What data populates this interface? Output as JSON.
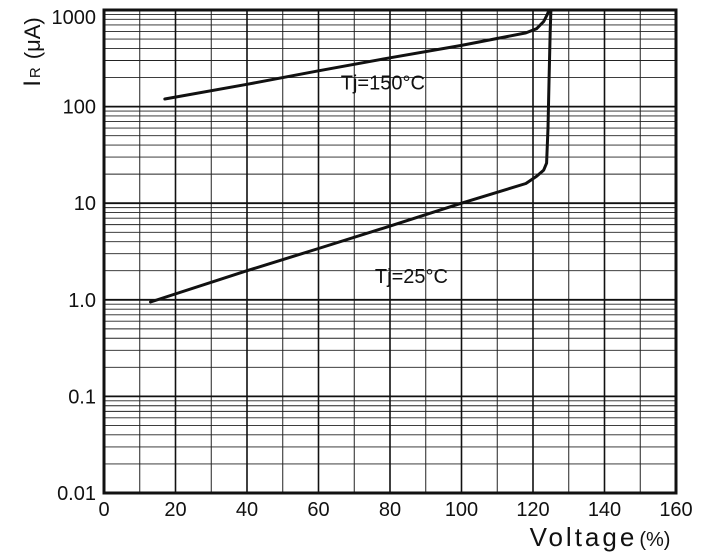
{
  "chart_data": {
    "type": "line",
    "title": "",
    "xlabel": "Voltage",
    "xlabel_unit": "(%)",
    "ylabel": "I",
    "ylabel_sub": "R",
    "ylabel_unit": "(μA)",
    "x_scale": "linear",
    "y_scale": "log",
    "xlim": [
      0,
      160
    ],
    "ylim": [
      0.01,
      1000
    ],
    "grid": true,
    "x_ticks": [
      0,
      20,
      40,
      60,
      80,
      100,
      120,
      140,
      160
    ],
    "x_tick_labels": [
      "0",
      "20",
      "40",
      "60",
      "80",
      "100",
      "120",
      "140",
      "160"
    ],
    "y_ticks": [
      0.01,
      0.1,
      1,
      10,
      100,
      1000
    ],
    "y_tick_labels": [
      "0.01",
      "0.1",
      "1.0",
      "10",
      "100",
      "1000"
    ],
    "series": [
      {
        "name": "Tj=150°C",
        "x": [
          17,
          40,
          60,
          80,
          100,
          118,
          121,
          123,
          124,
          124.5,
          124.8
        ],
        "y": [
          120,
          170,
          235,
          320,
          430,
          580,
          640,
          760,
          900,
          1100,
          1300
        ],
        "color": "#111111"
      },
      {
        "name": "Tj=25°C",
        "x": [
          13,
          40,
          60,
          80,
          100,
          118,
          121,
          123,
          123.8,
          124.2,
          124.5,
          124.8,
          125
        ],
        "y": [
          0.95,
          2.0,
          3.4,
          5.8,
          10,
          16,
          19,
          22,
          26,
          60,
          200,
          600,
          1300
        ],
        "color": "#111111"
      }
    ],
    "annotations": [
      {
        "text": "Tj=150°C",
        "x": 78,
        "y": 150
      },
      {
        "text": "Tj=25°C",
        "x": 86,
        "y": 1.5
      }
    ]
  }
}
